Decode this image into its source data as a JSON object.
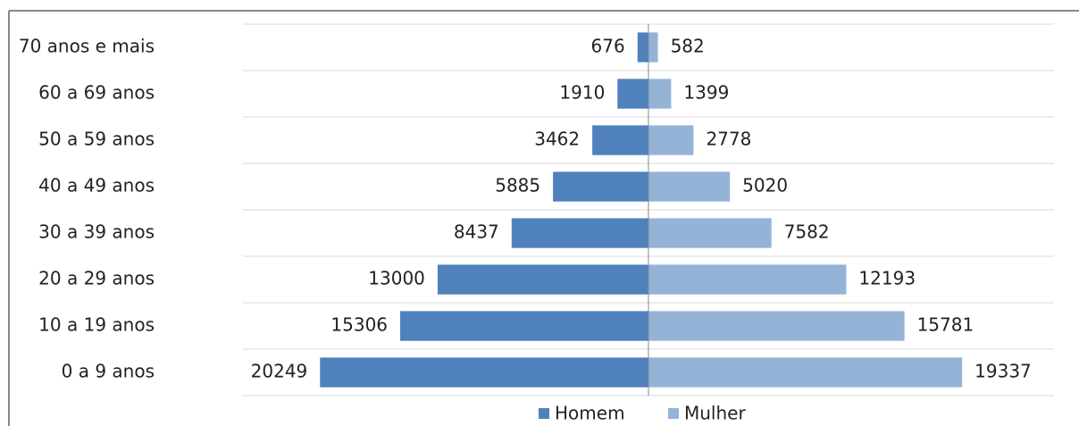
{
  "chart_data": {
    "type": "pyramid",
    "categories": [
      "70 anos e mais",
      "60 a 69 anos",
      "50 a 59 anos",
      "40 a 49 anos",
      "30 a 39 anos",
      "20 a 29 anos",
      "10 a 19 anos",
      "0 a 9 anos"
    ],
    "series": [
      {
        "name": "Homem",
        "color": "#4f81bd",
        "values": [
          676,
          1910,
          3462,
          5885,
          8437,
          13000,
          15306,
          20249
        ]
      },
      {
        "name": "Mulher",
        "color": "#95b3d7",
        "values": [
          582,
          1399,
          2778,
          5020,
          7582,
          12193,
          15781,
          19337
        ]
      }
    ],
    "xlim": [
      -25000,
      25000
    ],
    "legend": "bottom"
  }
}
